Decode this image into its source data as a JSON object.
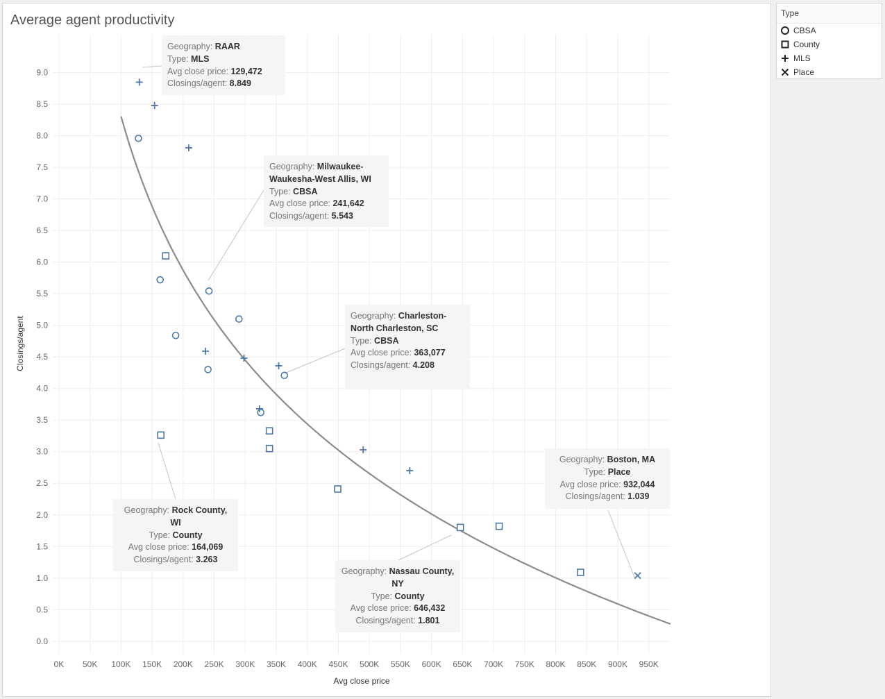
{
  "title": "Average agent productivity",
  "legend": {
    "title": "Type",
    "items": [
      {
        "label": "CBSA",
        "shape": "circle"
      },
      {
        "label": "County",
        "shape": "square"
      },
      {
        "label": "MLS",
        "shape": "plus"
      },
      {
        "label": "Place",
        "shape": "x"
      }
    ]
  },
  "colors": {
    "marks": "#4e79a7",
    "trend": "#8c8c8c",
    "grid": "#eeeeee"
  },
  "tooltips": [
    {
      "id": "raar",
      "lines": [
        {
          "label": "Geography: ",
          "value": "RAAR"
        },
        {
          "label": "Type: ",
          "value": "MLS"
        },
        {
          "label": "Avg close price: ",
          "value": "129,472"
        },
        {
          "label": "Closings/agent: ",
          "value": "8.849"
        }
      ]
    },
    {
      "id": "milwaukee",
      "lines": [
        {
          "label": "Geography: ",
          "value": "Milwaukee-Waukesha-West Allis, WI"
        },
        {
          "label": "Type: ",
          "value": "CBSA"
        },
        {
          "label": "Avg close price: ",
          "value": "241,642"
        },
        {
          "label": "Closings/agent: ",
          "value": "5.543"
        }
      ]
    },
    {
      "id": "charleston",
      "lines": [
        {
          "label": "Geography: ",
          "value": "Charleston-North Charleston, SC"
        },
        {
          "label": "Type: ",
          "value": "CBSA"
        },
        {
          "label": "Avg close price: ",
          "value": "363,077"
        },
        {
          "label": "Closings/agent: ",
          "value": "4.208"
        }
      ]
    },
    {
      "id": "boston",
      "lines": [
        {
          "label": "Geography: ",
          "value": "Boston, MA"
        },
        {
          "label": "Type: ",
          "value": "Place"
        },
        {
          "label": "Avg close price: ",
          "value": "932,044"
        },
        {
          "label": "Closings/agent: ",
          "value": "1.039"
        }
      ]
    },
    {
      "id": "rock",
      "lines": [
        {
          "label": "Geography: ",
          "value": "Rock County, WI"
        },
        {
          "label": "Type: ",
          "value": "County"
        },
        {
          "label": "Avg close price: ",
          "value": "164,069"
        },
        {
          "label": "Closings/agent: ",
          "value": "3.263"
        }
      ]
    },
    {
      "id": "nassau",
      "lines": [
        {
          "label": "Geography: ",
          "value": "Nassau County, NY"
        },
        {
          "label": "Type: ",
          "value": "County"
        },
        {
          "label": "Avg close price: ",
          "value": "646,432"
        },
        {
          "label": "Closings/agent: ",
          "value": "1.801"
        }
      ]
    }
  ],
  "chart_data": {
    "type": "scatter",
    "title": "Average agent productivity",
    "xlabel": "Avg close price",
    "ylabel": "Closings/agent",
    "xlim": [
      -10000,
      985000
    ],
    "ylim": [
      -0.2,
      9.6
    ],
    "x_ticks": [
      0,
      50000,
      100000,
      150000,
      200000,
      250000,
      300000,
      350000,
      400000,
      450000,
      500000,
      550000,
      600000,
      650000,
      700000,
      750000,
      800000,
      850000,
      900000,
      950000
    ],
    "x_tick_labels": [
      "0K",
      "50K",
      "100K",
      "150K",
      "200K",
      "250K",
      "300K",
      "350K",
      "400K",
      "450K",
      "500K",
      "550K",
      "600K",
      "650K",
      "700K",
      "750K",
      "800K",
      "850K",
      "900K",
      "950K"
    ],
    "y_ticks": [
      0,
      0.5,
      1,
      1.5,
      2,
      2.5,
      3,
      3.5,
      4,
      4.5,
      5,
      5.5,
      6,
      6.5,
      7,
      7.5,
      8,
      8.5,
      9
    ],
    "y_tick_labels": [
      "0.0",
      "0.5",
      "1.0",
      "1.5",
      "2.0",
      "2.5",
      "3.0",
      "3.5",
      "4.0",
      "4.5",
      "5.0",
      "5.5",
      "6.0",
      "6.5",
      "7.0",
      "7.5",
      "8.0",
      "8.5",
      "9.0"
    ],
    "grid": true,
    "legend_position": "right",
    "series": [
      {
        "name": "CBSA",
        "marker": "circle",
        "points": [
          [
            128000,
            7.96
          ],
          [
            163000,
            5.72
          ],
          [
            188000,
            4.84
          ],
          [
            240000,
            4.3
          ],
          [
            241642,
            5.543
          ],
          [
            290000,
            5.1
          ],
          [
            325000,
            3.62
          ],
          [
            363077,
            4.208
          ]
        ]
      },
      {
        "name": "County",
        "marker": "square",
        "points": [
          [
            164069,
            3.263
          ],
          [
            172000,
            6.1
          ],
          [
            339000,
            3.33
          ],
          [
            339000,
            3.05
          ],
          [
            449000,
            2.41
          ],
          [
            646432,
            1.801
          ],
          [
            709000,
            1.82
          ],
          [
            840000,
            1.09
          ]
        ]
      },
      {
        "name": "MLS",
        "marker": "plus",
        "points": [
          [
            129472,
            8.849
          ],
          [
            154000,
            8.48
          ],
          [
            209000,
            7.81
          ],
          [
            236000,
            4.59
          ],
          [
            298000,
            4.48
          ],
          [
            323000,
            3.68
          ],
          [
            354000,
            4.36
          ],
          [
            490000,
            3.03
          ],
          [
            565000,
            2.7
          ]
        ]
      },
      {
        "name": "Place",
        "marker": "x",
        "points": [
          [
            932044,
            1.039
          ]
        ]
      }
    ],
    "trend_line": {
      "type": "logarithmic",
      "a": 24.48,
      "b": 3.512
    }
  }
}
